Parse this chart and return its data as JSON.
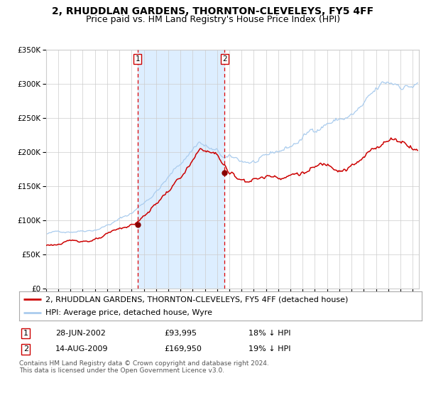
{
  "title": "2, RHUDDLAN GARDENS, THORNTON-CLEVELEYS, FY5 4FF",
  "subtitle": "Price paid vs. HM Land Registry's House Price Index (HPI)",
  "legend_label_red": "2, RHUDDLAN GARDENS, THORNTON-CLEVELEYS, FY5 4FF (detached house)",
  "legend_label_blue": "HPI: Average price, detached house, Wyre",
  "transaction1_date": "28-JUN-2002",
  "transaction1_price": "£93,995",
  "transaction1_hpi": "18% ↓ HPI",
  "transaction1_year": 2002.49,
  "transaction1_value": 93995,
  "transaction2_date": "14-AUG-2009",
  "transaction2_price": "£169,950",
  "transaction2_hpi": "19% ↓ HPI",
  "transaction2_year": 2009.62,
  "transaction2_value": 169950,
  "ylim": [
    0,
    350000
  ],
  "yticks": [
    0,
    50000,
    100000,
    150000,
    200000,
    250000,
    300000,
    350000
  ],
  "ytick_labels": [
    "£0",
    "£50K",
    "£100K",
    "£150K",
    "£200K",
    "£250K",
    "£300K",
    "£350K"
  ],
  "xlim_start": 1995.0,
  "xlim_end": 2025.5,
  "background_color": "#ffffff",
  "shaded_region_color": "#ddeeff",
  "red_line_color": "#cc0000",
  "blue_line_color": "#aaccee",
  "dashed_line_color": "#dd0000",
  "marker_color": "#880000",
  "grid_color": "#cccccc",
  "footer_text": "Contains HM Land Registry data © Crown copyright and database right 2024.\nThis data is licensed under the Open Government Licence v3.0.",
  "title_fontsize": 10,
  "subtitle_fontsize": 9,
  "tick_fontsize": 7.5,
  "legend_fontsize": 8
}
